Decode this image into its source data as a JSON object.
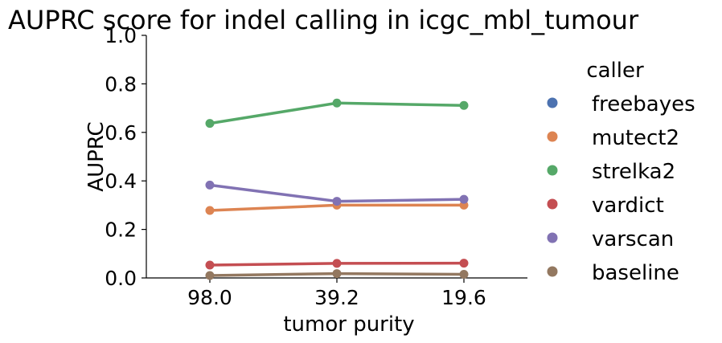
{
  "chart_data": {
    "type": "line",
    "title": "AUPRC score for indel calling in icgc_mbl_tumour",
    "xlabel": "tumor purity",
    "ylabel": "AUPRC",
    "categories": [
      "98.0",
      "39.2",
      "19.6"
    ],
    "ylim": [
      0,
      1.0
    ],
    "yticks": [
      "0.0",
      "0.2",
      "0.4",
      "0.6",
      "0.8",
      "1.0"
    ],
    "grid": false,
    "legend": {
      "title": "caller",
      "placement": "right-outside"
    },
    "series": [
      {
        "name": "freebayes",
        "color": "#4c72b0",
        "values": [
          null,
          null,
          null
        ]
      },
      {
        "name": "mutect2",
        "color": "#dd8452",
        "values": [
          0.278,
          0.3,
          0.3
        ]
      },
      {
        "name": "strelka2",
        "color": "#55a868",
        "values": [
          0.637,
          0.721,
          0.711
        ]
      },
      {
        "name": "vardict",
        "color": "#c44e52",
        "values": [
          0.053,
          0.06,
          0.061
        ]
      },
      {
        "name": "varscan",
        "color": "#8172b3",
        "values": [
          0.383,
          0.316,
          0.324
        ]
      },
      {
        "name": "baseline",
        "color": "#937860",
        "values": [
          0.01,
          0.018,
          0.015
        ]
      }
    ]
  }
}
